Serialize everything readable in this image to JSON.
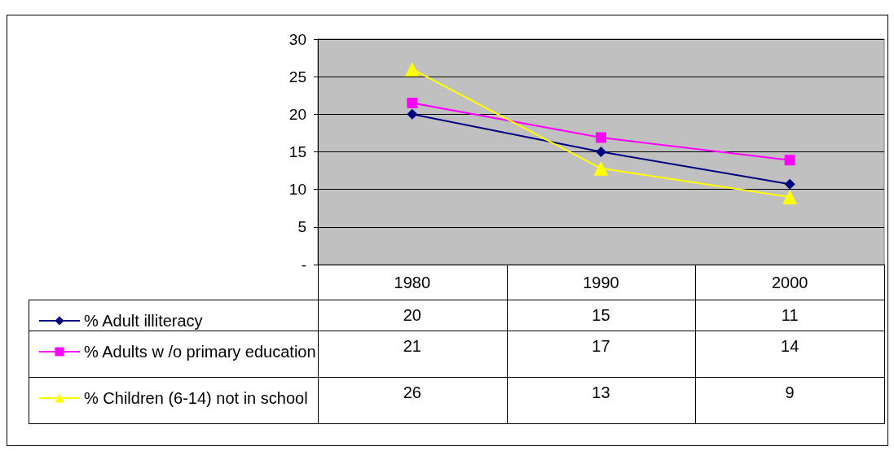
{
  "chart_data": {
    "type": "line",
    "categories": [
      "1980",
      "1990",
      "2000"
    ],
    "series": [
      {
        "name": "% Adult illiteracy",
        "color": "#000080",
        "marker": "diamond",
        "values": [
          20,
          15,
          10.7
        ],
        "value_labels": [
          "20",
          "15",
          "11"
        ]
      },
      {
        "name": "% Adults w /o primary education",
        "color": "#ff00ff",
        "marker": "square",
        "values": [
          21.5,
          16.9,
          13.9
        ],
        "value_labels": [
          "21",
          "17",
          "14"
        ]
      },
      {
        "name": "% Children (6-14) not in school",
        "color": "#ffff00",
        "marker": "triangle",
        "values": [
          26,
          12.8,
          9
        ],
        "value_labels": [
          "26",
          "13",
          "9"
        ]
      }
    ],
    "ylim": [
      0,
      30
    ],
    "yticks": [
      {
        "value": 0,
        "label": "-"
      },
      5,
      10,
      15,
      20,
      25,
      30
    ],
    "grid": "y",
    "legend": "bottom",
    "line_style": "solid"
  }
}
